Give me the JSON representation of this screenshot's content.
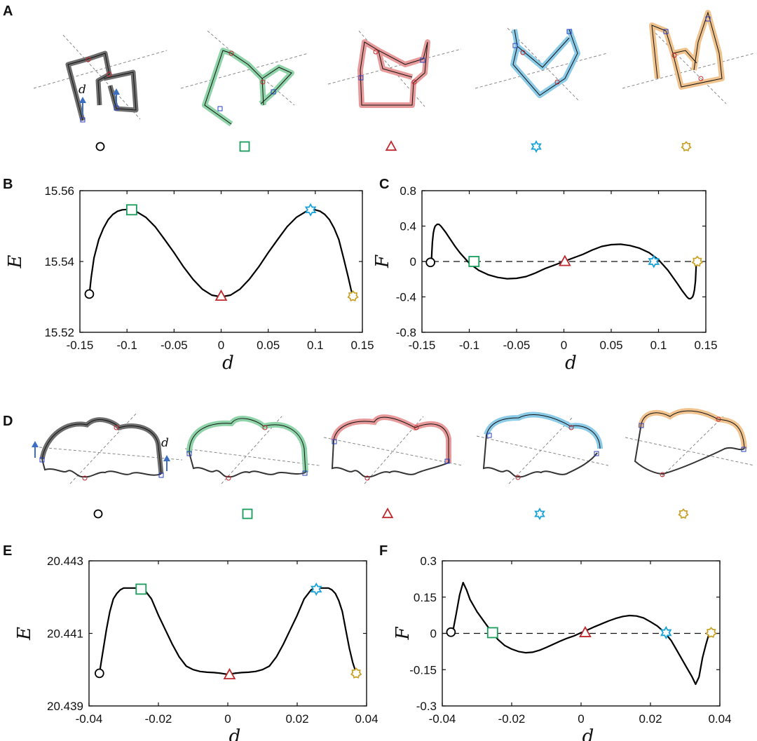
{
  "panel_labels": {
    "A": "A",
    "B": "B",
    "C": "C",
    "D": "D",
    "E": "E",
    "F": "F"
  },
  "annotations": {
    "d_top": "d",
    "d_bottom": "d"
  },
  "colors": {
    "curve": "#000000",
    "circle": "#000000",
    "square": "#1a9c5b",
    "triangle": "#c0282d",
    "star6": "#1aa3d9",
    "star7": "#c9a227",
    "shape_fills": [
      "#7a7a7a",
      "#8fd3a8",
      "#e89a9a",
      "#8ccbe8",
      "#f0c38e"
    ]
  },
  "markers": [
    "circle",
    "square",
    "triangle",
    "star6",
    "star7"
  ],
  "chart_data": [
    {
      "id": "B",
      "type": "line",
      "xlabel": "d",
      "ylabel": "E",
      "xlim": [
        -0.15,
        0.15
      ],
      "ylim": [
        15.52,
        15.56
      ],
      "xticks": [
        "-0.15",
        "-0.1",
        "-0.05",
        "0",
        "0.05",
        "0.1",
        "0.15"
      ],
      "yticks": [
        "15.52",
        "15.54",
        "15.56"
      ],
      "x": [
        -0.14,
        -0.138,
        -0.135,
        -0.13,
        -0.125,
        -0.12,
        -0.115,
        -0.11,
        -0.105,
        -0.1,
        -0.095,
        -0.09,
        -0.08,
        -0.07,
        -0.06,
        -0.05,
        -0.04,
        -0.03,
        -0.02,
        -0.01,
        0,
        0.01,
        0.02,
        0.03,
        0.04,
        0.05,
        0.06,
        0.07,
        0.08,
        0.09,
        0.095,
        0.1,
        0.105,
        0.11,
        0.115,
        0.12,
        0.125,
        0.13,
        0.135,
        0.138,
        0.14
      ],
      "y": [
        15.5305,
        15.5355,
        15.541,
        15.5462,
        15.5494,
        15.5518,
        15.5533,
        15.5542,
        15.5546,
        15.5547,
        15.5546,
        15.5541,
        15.5525,
        15.5498,
        15.5462,
        15.5425,
        15.5385,
        15.535,
        15.5322,
        15.5305,
        15.53,
        15.5305,
        15.5322,
        15.535,
        15.5385,
        15.5425,
        15.5462,
        15.5498,
        15.5525,
        15.5541,
        15.5546,
        15.5546,
        15.5542,
        15.5533,
        15.5518,
        15.5494,
        15.5462,
        15.541,
        15.5355,
        15.532,
        15.53
      ],
      "markers": [
        {
          "shape": "circle",
          "x": -0.14,
          "y": 15.5308
        },
        {
          "shape": "square",
          "x": -0.095,
          "y": 15.5546
        },
        {
          "shape": "triangle",
          "x": 0,
          "y": 15.5302
        },
        {
          "shape": "star6",
          "x": 0.095,
          "y": 15.5546
        },
        {
          "shape": "star7",
          "x": 0.14,
          "y": 15.5302
        }
      ]
    },
    {
      "id": "C",
      "type": "line",
      "xlabel": "d",
      "ylabel": "F",
      "xlim": [
        -0.15,
        0.15
      ],
      "ylim": [
        -0.8,
        0.8
      ],
      "xticks": [
        "-0.15",
        "-0.1",
        "-0.05",
        "0",
        "0.05",
        "0.1",
        "0.15"
      ],
      "yticks": [
        "-0.8",
        "-0.4",
        "0",
        "0.4",
        "0.8"
      ],
      "dashed_zero": true,
      "x": [
        -0.14,
        -0.1395,
        -0.139,
        -0.138,
        -0.137,
        -0.136,
        -0.134,
        -0.132,
        -0.13,
        -0.125,
        -0.12,
        -0.115,
        -0.11,
        -0.1,
        -0.09,
        -0.08,
        -0.07,
        -0.06,
        -0.05,
        -0.04,
        -0.03,
        -0.02,
        -0.01,
        0,
        0.01,
        0.02,
        0.03,
        0.04,
        0.05,
        0.06,
        0.07,
        0.08,
        0.09,
        0.1,
        0.11,
        0.12,
        0.125,
        0.13,
        0.132,
        0.134,
        0.136,
        0.137,
        0.138,
        0.139,
        0.1395,
        0.14
      ],
      "y": [
        0,
        0.12,
        0.22,
        0.32,
        0.37,
        0.4,
        0.42,
        0.42,
        0.4,
        0.33,
        0.25,
        0.17,
        0.1,
        -0.02,
        -0.1,
        -0.15,
        -0.18,
        -0.195,
        -0.19,
        -0.17,
        -0.13,
        -0.08,
        -0.04,
        0,
        0.04,
        0.08,
        0.13,
        0.17,
        0.19,
        0.195,
        0.18,
        0.15,
        0.1,
        0.02,
        -0.1,
        -0.25,
        -0.33,
        -0.4,
        -0.42,
        -0.42,
        -0.4,
        -0.37,
        -0.32,
        -0.22,
        -0.12,
        0
      ],
      "markers": [
        {
          "shape": "circle",
          "x": -0.141,
          "y": -0.01
        },
        {
          "shape": "square",
          "x": -0.095,
          "y": 0
        },
        {
          "shape": "triangle",
          "x": 0.001,
          "y": 0
        },
        {
          "shape": "star6",
          "x": 0.095,
          "y": 0
        },
        {
          "shape": "star7",
          "x": 0.141,
          "y": 0
        }
      ]
    },
    {
      "id": "E",
      "type": "line",
      "xlabel": "d",
      "ylabel": "E",
      "xlim": [
        -0.04,
        0.04
      ],
      "ylim": [
        20.439,
        20.443
      ],
      "xticks": [
        "-0.04",
        "-0.02",
        "0",
        "0.02",
        "0.04"
      ],
      "yticks": [
        "20.439",
        "20.441",
        "20.443"
      ],
      "x": [
        -0.037,
        -0.0365,
        -0.036,
        -0.035,
        -0.034,
        -0.033,
        -0.032,
        -0.031,
        -0.03,
        -0.029,
        -0.028,
        -0.027,
        -0.026,
        -0.025,
        -0.024,
        -0.022,
        -0.02,
        -0.018,
        -0.016,
        -0.014,
        -0.012,
        -0.01,
        -0.008,
        -0.006,
        -0.004,
        -0.002,
        0,
        0.002,
        0.004,
        0.006,
        0.008,
        0.01,
        0.012,
        0.014,
        0.016,
        0.018,
        0.02,
        0.022,
        0.024,
        0.025,
        0.026,
        0.027,
        0.028,
        0.029,
        0.03,
        0.031,
        0.032,
        0.033,
        0.034,
        0.035,
        0.036,
        0.0365,
        0.037
      ],
      "y": [
        20.4399,
        20.4402,
        20.4405,
        20.4411,
        20.4416,
        20.44195,
        20.4421,
        20.4422,
        20.44225,
        20.44225,
        20.44225,
        20.44225,
        20.44225,
        20.44225,
        20.4422,
        20.44195,
        20.4415,
        20.4411,
        20.4407,
        20.44035,
        20.4401,
        20.44,
        20.43995,
        20.43993,
        20.43992,
        20.4399,
        20.43987,
        20.4399,
        20.43992,
        20.43993,
        20.43995,
        20.44,
        20.4401,
        20.44035,
        20.4407,
        20.4411,
        20.4415,
        20.44195,
        20.4422,
        20.44225,
        20.44225,
        20.44225,
        20.44225,
        20.44225,
        20.4422,
        20.4421,
        20.4419,
        20.4416,
        20.4411,
        20.4406,
        20.4402,
        20.44005,
        20.4399
      ],
      "markers": [
        {
          "shape": "circle",
          "x": -0.037,
          "y": 20.4399
        },
        {
          "shape": "square",
          "x": -0.025,
          "y": 20.44222
        },
        {
          "shape": "triangle",
          "x": 0.0005,
          "y": 20.43986
        },
        {
          "shape": "star6",
          "x": 0.0255,
          "y": 20.44222
        },
        {
          "shape": "star7",
          "x": 0.037,
          "y": 20.4399
        }
      ]
    },
    {
      "id": "F",
      "type": "line",
      "xlabel": "d",
      "ylabel": "F",
      "xlim": [
        -0.04,
        0.04
      ],
      "ylim": [
        -0.3,
        0.3
      ],
      "xticks": [
        "-0.04",
        "-0.02",
        "0",
        "0.02",
        "0.04"
      ],
      "yticks": [
        "-0.3",
        "-0.15",
        "0",
        "0.15",
        "0.3"
      ],
      "dashed_zero": true,
      "x": [
        -0.037,
        -0.036,
        -0.035,
        -0.034,
        -0.033,
        -0.032,
        -0.03,
        -0.028,
        -0.026,
        -0.024,
        -0.022,
        -0.02,
        -0.018,
        -0.016,
        -0.014,
        -0.012,
        -0.01,
        -0.008,
        -0.006,
        -0.004,
        -0.002,
        0,
        0.002,
        0.004,
        0.006,
        0.008,
        0.01,
        0.012,
        0.014,
        0.016,
        0.018,
        0.02,
        0.022,
        0.024,
        0.026,
        0.028,
        0.03,
        0.032,
        0.033,
        0.034,
        0.035,
        0.036,
        0.037
      ],
      "y": [
        0.005,
        0.08,
        0.16,
        0.21,
        0.18,
        0.14,
        0.09,
        0.05,
        0.01,
        -0.025,
        -0.05,
        -0.065,
        -0.075,
        -0.08,
        -0.078,
        -0.07,
        -0.058,
        -0.045,
        -0.032,
        -0.02,
        -0.01,
        0.003,
        0.015,
        0.028,
        0.04,
        0.052,
        0.062,
        0.07,
        0.074,
        0.072,
        0.064,
        0.048,
        0.03,
        0.005,
        -0.03,
        -0.08,
        -0.13,
        -0.18,
        -0.21,
        -0.18,
        -0.1,
        -0.045,
        0.005
      ],
      "markers": [
        {
          "shape": "circle",
          "x": -0.0375,
          "y": 0.005
        },
        {
          "shape": "square",
          "x": -0.0255,
          "y": 0.003
        },
        {
          "shape": "triangle",
          "x": 0.0012,
          "y": 0.003
        },
        {
          "shape": "star6",
          "x": 0.0245,
          "y": 0.003
        },
        {
          "shape": "star7",
          "x": 0.0375,
          "y": 0.003
        }
      ]
    }
  ]
}
